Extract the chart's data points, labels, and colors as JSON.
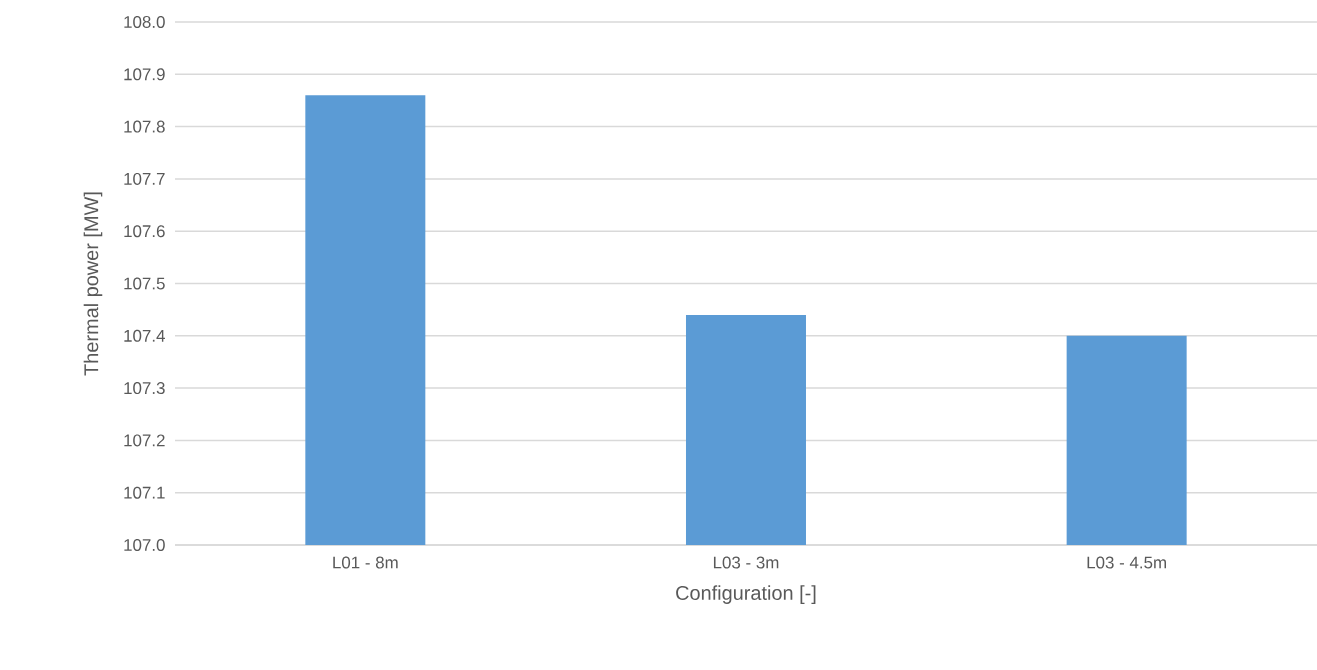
{
  "chart_data": {
    "type": "bar",
    "xlabel": "Configuration [-]",
    "ylabel": "Thermal power [MW]",
    "categories": [
      "L01 - 8m",
      "L03 - 3m",
      "L03 - 4.5m"
    ],
    "values": [
      107.86,
      107.44,
      107.4
    ],
    "color": "#5b9bd5",
    "ylim": [
      107.0,
      108.0
    ],
    "yticks": [
      {
        "value": 107.0,
        "label": "107.0"
      },
      {
        "value": 107.1,
        "label": "107.1"
      },
      {
        "value": 107.2,
        "label": "107.2"
      },
      {
        "value": 107.3,
        "label": "107.3"
      },
      {
        "value": 107.4,
        "label": "107.4"
      },
      {
        "value": 107.5,
        "label": "107.5"
      },
      {
        "value": 107.6,
        "label": "107.6"
      },
      {
        "value": 107.7,
        "label": "107.7"
      },
      {
        "value": 107.8,
        "label": "107.8"
      },
      {
        "value": 107.9,
        "label": "107.9"
      },
      {
        "value": 108.0,
        "label": "108.0"
      }
    ],
    "grid": "y"
  }
}
